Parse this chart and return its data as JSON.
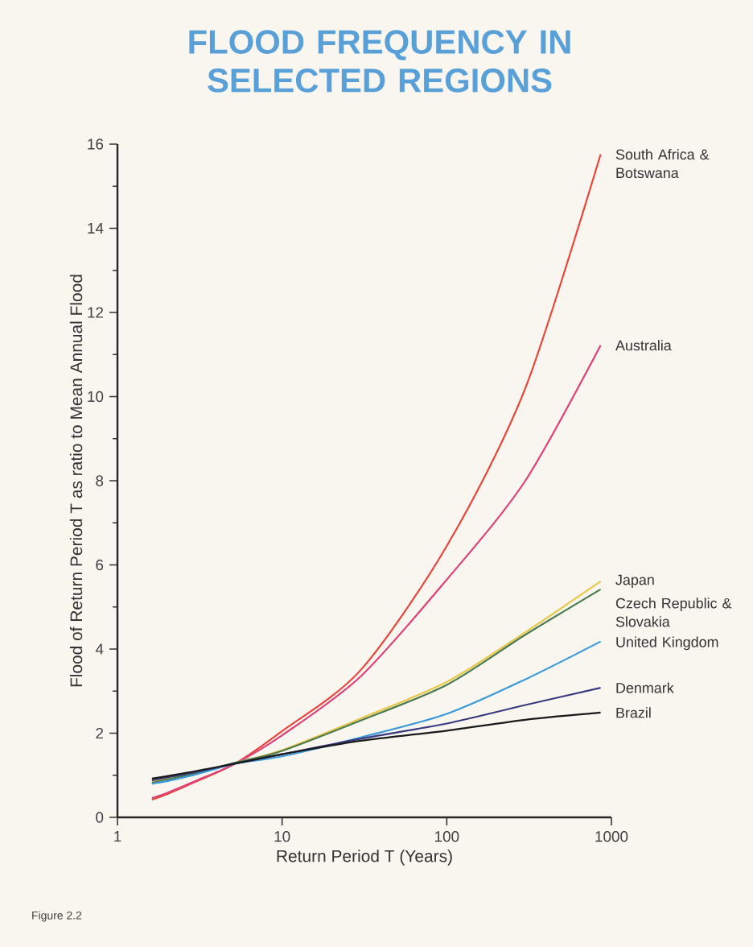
{
  "chart_data": {
    "type": "line",
    "title": "FLOOD FREQUENCY IN SELECTED REGIONS",
    "xlabel": "Return Period T (Years)",
    "ylabel": "Flood of Return Period T as ratio to Mean Annual Flood",
    "log": "x",
    "x": [
      1.62,
      2,
      3,
      5.2,
      10,
      30,
      100,
      300,
      860
    ],
    "xlim": [
      1,
      1000
    ],
    "xticks": [
      1,
      10,
      100,
      1000
    ],
    "ylim": [
      0,
      16
    ],
    "yticks": [
      0,
      2,
      4,
      6,
      8,
      10,
      12,
      14,
      16
    ],
    "series": [
      {
        "name": "South Africa & Botswana",
        "color": "#e8453c",
        "values": [
          0.42,
          0.55,
          0.85,
          1.28,
          2.05,
          3.5,
          6.45,
          10.2,
          15.76
        ]
      },
      {
        "name": "Australia",
        "color": "#e0407a",
        "values": [
          0.46,
          0.58,
          0.87,
          1.28,
          1.95,
          3.35,
          5.65,
          8.0,
          11.22
        ]
      },
      {
        "name": "Japan",
        "color": "#e8c84a",
        "values": [
          0.85,
          0.92,
          1.07,
          1.3,
          1.6,
          2.35,
          3.22,
          4.4,
          5.61
        ]
      },
      {
        "name": "Czech Republic & Slovakia",
        "color": "#4a7a4e",
        "values": [
          0.82,
          0.9,
          1.05,
          1.3,
          1.58,
          2.3,
          3.15,
          4.34,
          5.42
        ]
      },
      {
        "name": "United Kingdom",
        "color": "#3a9ad9",
        "values": [
          0.8,
          0.86,
          1.02,
          1.28,
          1.45,
          1.9,
          2.46,
          3.28,
          4.18
        ]
      },
      {
        "name": "Denmark",
        "color": "#3a3a80",
        "values": [
          0.88,
          0.95,
          1.08,
          1.28,
          1.5,
          1.87,
          2.23,
          2.67,
          3.08
        ]
      },
      {
        "name": "Brazil",
        "color": "#1a1a1a",
        "values": [
          0.92,
          0.98,
          1.1,
          1.28,
          1.5,
          1.82,
          2.06,
          2.32,
          2.49
        ]
      }
    ],
    "annotations": [
      "Figure 2.2"
    ]
  }
}
